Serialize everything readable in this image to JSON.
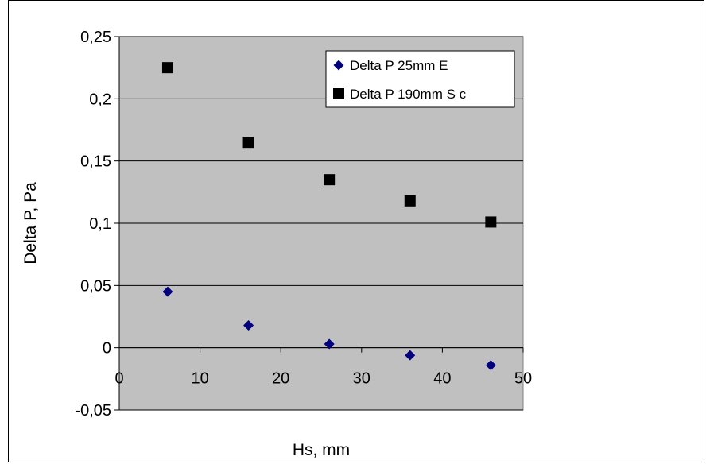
{
  "chart_data": {
    "type": "scatter",
    "title": "",
    "xlabel": "Hs, mm",
    "ylabel": "Delta P, Pa",
    "xlim": [
      0,
      50
    ],
    "ylim": [
      -0.05,
      0.25
    ],
    "x_ticks": [
      0,
      10,
      20,
      30,
      40,
      50
    ],
    "x_tick_labels": [
      "0",
      "10",
      "20",
      "30",
      "40",
      "50"
    ],
    "y_ticks": [
      -0.05,
      0,
      0.05,
      0.1,
      0.15,
      0.2,
      0.25
    ],
    "y_tick_labels": [
      "-0,05",
      "0",
      "0,05",
      "0,1",
      "0,15",
      "0,2",
      "0,25"
    ],
    "grid": "horizontal",
    "plot_background": "#c0c0c0",
    "legend_position": "top-right",
    "series": [
      {
        "name": "Delta P 25mm E",
        "marker": "diamond",
        "color": "#000080",
        "x": [
          6,
          16,
          26,
          36,
          46
        ],
        "y": [
          0.045,
          0.018,
          0.003,
          -0.006,
          -0.014
        ]
      },
      {
        "name": "Delta P 190mm S c",
        "marker": "square",
        "color": "#000000",
        "x": [
          6,
          16,
          26,
          36,
          46
        ],
        "y": [
          0.225,
          0.165,
          0.135,
          0.118,
          0.101
        ]
      }
    ]
  }
}
